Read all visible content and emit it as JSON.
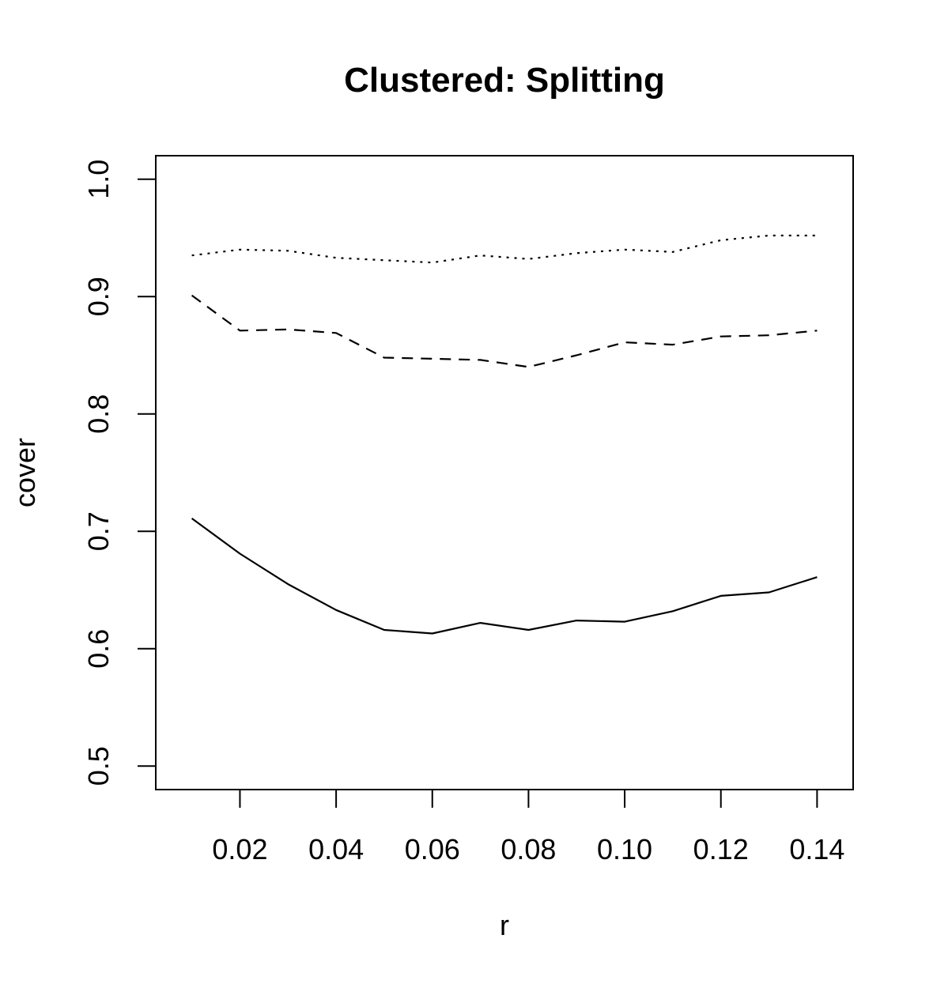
{
  "chart_data": {
    "type": "line",
    "title": "Clustered: Splitting",
    "xlabel": "r",
    "ylabel": "cover",
    "xlim": [
      0.0025,
      0.1475
    ],
    "ylim": [
      0.48,
      1.02
    ],
    "x": [
      0.01,
      0.02,
      0.03,
      0.04,
      0.05,
      0.06,
      0.07,
      0.08,
      0.09,
      0.1,
      0.11,
      0.12,
      0.13,
      0.14
    ],
    "x_ticks": [
      0.02,
      0.04,
      0.06,
      0.08,
      0.1,
      0.12,
      0.14
    ],
    "x_tick_labels": [
      "0.02",
      "0.04",
      "0.06",
      "0.08",
      "0.10",
      "0.12",
      "0.14"
    ],
    "y_ticks": [
      0.5,
      0.6,
      0.7,
      0.8,
      0.9,
      1.0
    ],
    "y_tick_labels": [
      "0.5",
      "0.6",
      "0.7",
      "0.8",
      "0.9",
      "1.0"
    ],
    "grid": false,
    "series": [
      {
        "style": "dotted",
        "color": "#000000",
        "values": [
          0.935,
          0.94,
          0.939,
          0.933,
          0.931,
          0.929,
          0.935,
          0.932,
          0.937,
          0.94,
          0.938,
          0.948,
          0.952,
          0.952
        ]
      },
      {
        "style": "dashed",
        "color": "#000000",
        "values": [
          0.901,
          0.871,
          0.872,
          0.869,
          0.848,
          0.847,
          0.846,
          0.84,
          0.85,
          0.861,
          0.859,
          0.866,
          0.867,
          0.871
        ]
      },
      {
        "style": "solid",
        "color": "#000000",
        "values": [
          0.711,
          0.681,
          0.655,
          0.633,
          0.616,
          0.613,
          0.622,
          0.616,
          0.624,
          0.623,
          0.632,
          0.645,
          0.648,
          0.661
        ]
      }
    ]
  }
}
